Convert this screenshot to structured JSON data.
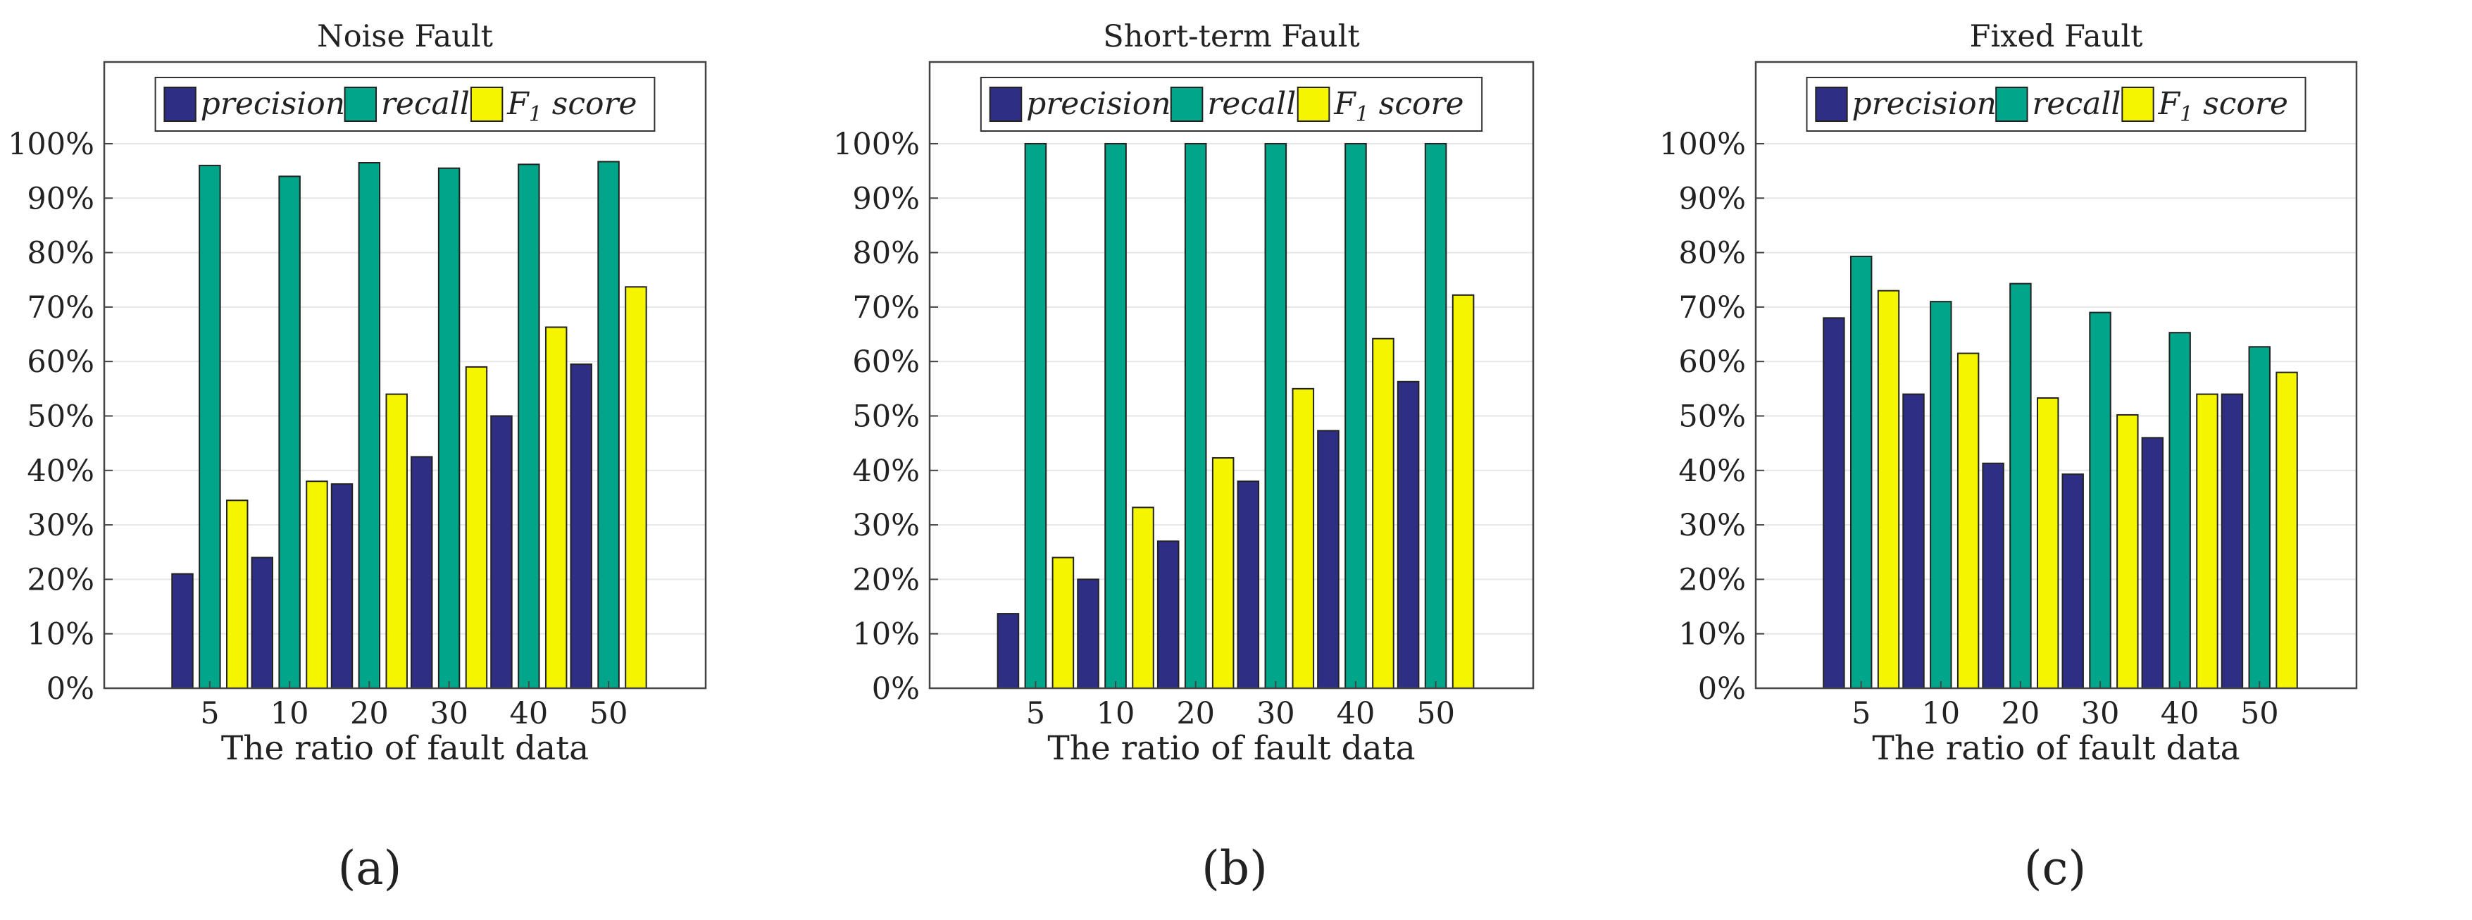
{
  "figure": {
    "panel_labels": [
      "(a)",
      "(b)",
      "(c)"
    ]
  },
  "chart_data": [
    {
      "type": "bar",
      "title": "Noise Fault",
      "xlabel": "The ratio of fault data",
      "ylabel": "",
      "categories": [
        "5",
        "10",
        "20",
        "30",
        "40",
        "50"
      ],
      "ylim": [
        0,
        115
      ],
      "yticks": [
        0,
        10,
        20,
        30,
        40,
        50,
        60,
        70,
        80,
        90,
        100
      ],
      "ytick_labels": [
        "0%",
        "10%",
        "20%",
        "30%",
        "40%",
        "50%",
        "60%",
        "70%",
        "80%",
        "90%",
        "100%"
      ],
      "grid": true,
      "legend_position": "top",
      "series": [
        {
          "name": "precision",
          "values": [
            21,
            24,
            37.5,
            42.5,
            50,
            59.5
          ]
        },
        {
          "name": "recall",
          "values": [
            96,
            94,
            96.5,
            95.5,
            96.2,
            96.7
          ]
        },
        {
          "name": "F1 score",
          "values": [
            34.5,
            38,
            54,
            59,
            66.3,
            73.7
          ]
        }
      ]
    },
    {
      "type": "bar",
      "title": "Short-term Fault",
      "xlabel": "The ratio of fault data",
      "ylabel": "",
      "categories": [
        "5",
        "10",
        "20",
        "30",
        "40",
        "50"
      ],
      "ylim": [
        0,
        115
      ],
      "yticks": [
        0,
        10,
        20,
        30,
        40,
        50,
        60,
        70,
        80,
        90,
        100
      ],
      "ytick_labels": [
        "0%",
        "10%",
        "20%",
        "30%",
        "40%",
        "50%",
        "60%",
        "70%",
        "80%",
        "90%",
        "100%"
      ],
      "grid": true,
      "legend_position": "top",
      "series": [
        {
          "name": "precision",
          "values": [
            13.7,
            20,
            27,
            38,
            47.3,
            56.3
          ]
        },
        {
          "name": "recall",
          "values": [
            100,
            100,
            100,
            100,
            100,
            100
          ]
        },
        {
          "name": "F1 score",
          "values": [
            24,
            33.2,
            42.3,
            55,
            64.2,
            72.2
          ]
        }
      ]
    },
    {
      "type": "bar",
      "title": "Fixed Fault",
      "xlabel": "The ratio of fault data",
      "ylabel": "",
      "categories": [
        "5",
        "10",
        "20",
        "30",
        "40",
        "50"
      ],
      "ylim": [
        0,
        115
      ],
      "yticks": [
        0,
        10,
        20,
        30,
        40,
        50,
        60,
        70,
        80,
        90,
        100
      ],
      "ytick_labels": [
        "0%",
        "10%",
        "20%",
        "30%",
        "40%",
        "50%",
        "60%",
        "70%",
        "80%",
        "90%",
        "100%"
      ],
      "grid": true,
      "legend_position": "top",
      "series": [
        {
          "name": "precision",
          "values": [
            68,
            54,
            41.3,
            39.3,
            46,
            54
          ]
        },
        {
          "name": "recall",
          "values": [
            79.3,
            71,
            74.3,
            69,
            65.3,
            62.7
          ]
        },
        {
          "name": "F1 score",
          "values": [
            73,
            61.5,
            53.3,
            50.2,
            54,
            58
          ]
        }
      ]
    }
  ],
  "legend": {
    "labels": [
      "precision",
      "recall",
      "F",
      "1",
      " score"
    ]
  },
  "colors": {
    "precision": "#2e2e84",
    "recall": "#00a58a",
    "f1": "#f5f500"
  }
}
